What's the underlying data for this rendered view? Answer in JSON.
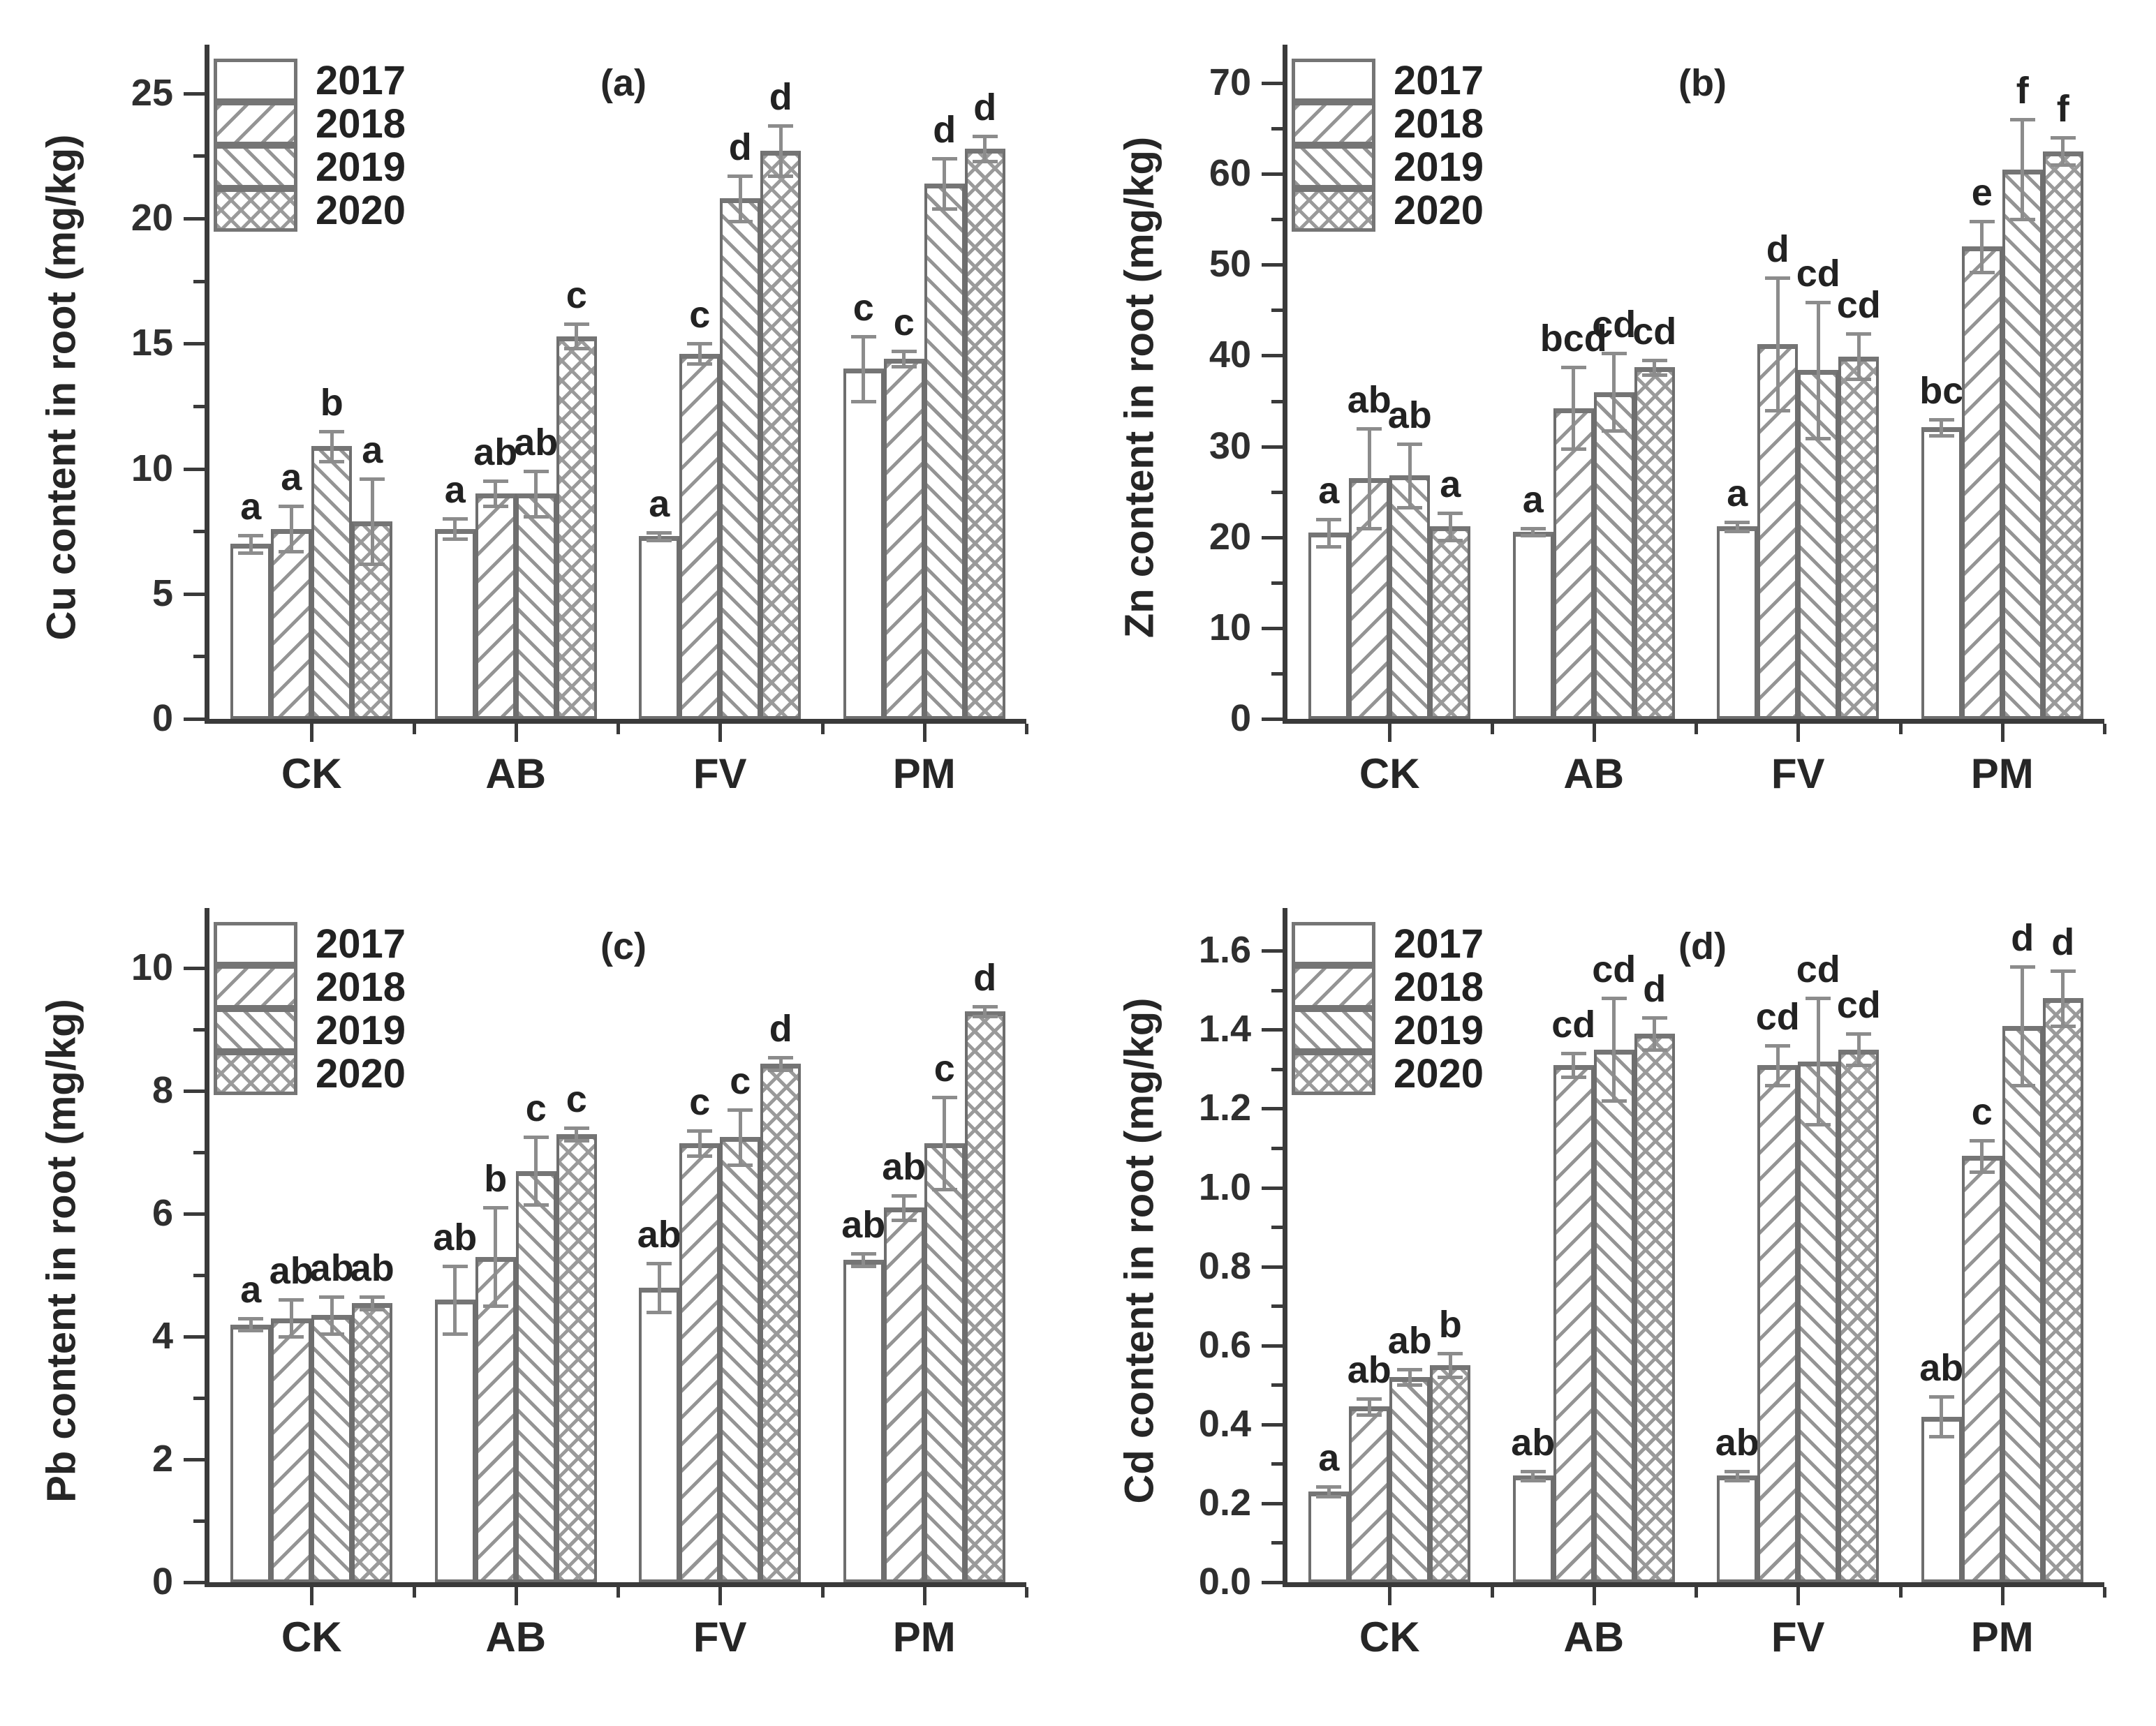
{
  "colors": {
    "background": "#ffffff",
    "ink": "#3a3a3a",
    "bar_outline": "#6e6e6e",
    "hatch_line": "#949494",
    "error_bar": "#8c8c8c"
  },
  "legend_years": [
    "2017",
    "2018",
    "2019",
    "2020"
  ],
  "chart_data": [
    {
      "type": "bar",
      "panel_label": "(a)",
      "ylabel": "Cu content in root (mg/kg)",
      "xlabel": "",
      "categories": [
        "CK",
        "AB",
        "FV",
        "PM"
      ],
      "ylim": [
        0,
        26.5
      ],
      "ytick_values": [
        0,
        5,
        10,
        15,
        20,
        25
      ],
      "yticks": [
        "0",
        "5",
        "10",
        "15",
        "20",
        "25"
      ],
      "minor_step": 2.5,
      "grid": false,
      "legend_position": "top-left",
      "series": [
        {
          "name": "2017",
          "hatch": "none",
          "values": [
            7.0,
            7.6,
            7.3,
            14.0
          ],
          "errors": [
            0.35,
            0.4,
            0.15,
            1.3
          ],
          "letters": [
            "a",
            "a",
            "a",
            "c"
          ]
        },
        {
          "name": "2018",
          "hatch": "diagonal-up",
          "values": [
            7.6,
            9.0,
            14.6,
            14.4
          ],
          "errors": [
            0.9,
            0.5,
            0.4,
            0.3
          ],
          "letters": [
            "a",
            "ab",
            "c",
            "c"
          ]
        },
        {
          "name": "2019",
          "hatch": "diagonal-down",
          "values": [
            10.9,
            9.0,
            20.8,
            21.4
          ],
          "errors": [
            0.6,
            0.9,
            0.9,
            1.0
          ],
          "letters": [
            "b",
            "ab",
            "d",
            "d"
          ]
        },
        {
          "name": "2020",
          "hatch": "cross",
          "values": [
            7.9,
            15.3,
            22.7,
            22.8
          ],
          "errors": [
            1.7,
            0.5,
            1.0,
            0.5
          ],
          "letters": [
            "a",
            "c",
            "d",
            "d"
          ]
        }
      ]
    },
    {
      "type": "bar",
      "panel_label": "(b)",
      "ylabel": "Zn content in root (mg/kg)",
      "xlabel": "",
      "categories": [
        "CK",
        "AB",
        "FV",
        "PM"
      ],
      "ylim": [
        0,
        73
      ],
      "ytick_values": [
        0,
        10,
        20,
        30,
        40,
        50,
        60,
        70
      ],
      "yticks": [
        "0",
        "10",
        "20",
        "30",
        "40",
        "50",
        "60",
        "70"
      ],
      "minor_step": 5,
      "grid": false,
      "legend_position": "top-left",
      "series": [
        {
          "name": "2017",
          "hatch": "none",
          "values": [
            20.5,
            20.6,
            21.2,
            32.1
          ],
          "errors": [
            1.5,
            0.4,
            0.5,
            0.9
          ],
          "letters": [
            "a",
            "a",
            "a",
            "bc"
          ]
        },
        {
          "name": "2018",
          "hatch": "diagonal-up",
          "values": [
            26.5,
            34.2,
            41.3,
            52.0
          ],
          "errors": [
            5.5,
            4.5,
            7.3,
            2.8
          ],
          "letters": [
            "ab",
            "bcd",
            "d",
            "e"
          ]
        },
        {
          "name": "2019",
          "hatch": "diagonal-down",
          "values": [
            26.8,
            36.0,
            38.4,
            60.5
          ],
          "errors": [
            3.5,
            4.3,
            7.5,
            5.5
          ],
          "letters": [
            "ab",
            "cd",
            "cd",
            "f"
          ]
        },
        {
          "name": "2020",
          "hatch": "cross",
          "values": [
            21.2,
            38.7,
            39.9,
            62.5
          ],
          "errors": [
            1.5,
            0.8,
            2.5,
            1.5
          ],
          "letters": [
            "a",
            "cd",
            "cd",
            "f"
          ]
        }
      ]
    },
    {
      "type": "bar",
      "panel_label": "(c)",
      "ylabel": "Pb content in root (mg/kg)",
      "xlabel": "",
      "categories": [
        "CK",
        "AB",
        "FV",
        "PM"
      ],
      "ylim": [
        0,
        10.8
      ],
      "ytick_values": [
        0,
        2,
        4,
        6,
        8,
        10
      ],
      "yticks": [
        "0",
        "2",
        "4",
        "6",
        "8",
        "10"
      ],
      "minor_step": 1,
      "grid": false,
      "legend_position": "top-left",
      "series": [
        {
          "name": "2017",
          "hatch": "none",
          "values": [
            4.2,
            4.6,
            4.8,
            5.25
          ],
          "errors": [
            0.1,
            0.55,
            0.4,
            0.1
          ],
          "letters": [
            "a",
            "ab",
            "ab",
            "ab"
          ]
        },
        {
          "name": "2018",
          "hatch": "diagonal-up",
          "values": [
            4.3,
            5.3,
            7.15,
            6.1
          ],
          "errors": [
            0.3,
            0.8,
            0.2,
            0.2
          ],
          "letters": [
            "ab",
            "b",
            "c",
            "ab"
          ]
        },
        {
          "name": "2019",
          "hatch": "diagonal-down",
          "values": [
            4.35,
            6.7,
            7.25,
            7.15
          ],
          "errors": [
            0.3,
            0.55,
            0.45,
            0.75
          ],
          "letters": [
            "ab",
            "c",
            "c",
            "c"
          ]
        },
        {
          "name": "2020",
          "hatch": "cross",
          "values": [
            4.55,
            7.3,
            8.45,
            9.3
          ],
          "errors": [
            0.1,
            0.1,
            0.1,
            0.08
          ],
          "letters": [
            "ab",
            "c",
            "d",
            "d"
          ]
        }
      ]
    },
    {
      "type": "bar",
      "panel_label": "(d)",
      "ylabel": "Cd content in root (mg/kg)",
      "xlabel": "",
      "categories": [
        "CK",
        "AB",
        "FV",
        "PM"
      ],
      "ylim": [
        0,
        1.68
      ],
      "ytick_values": [
        0,
        0.2,
        0.4,
        0.6,
        0.8,
        1.0,
        1.2,
        1.4,
        1.6
      ],
      "yticks": [
        "0.0",
        "0.2",
        "0.4",
        "0.6",
        "0.8",
        "1.0",
        "1.2",
        "1.4",
        "1.6"
      ],
      "minor_step": 0.1,
      "grid": false,
      "legend_position": "top-left",
      "series": [
        {
          "name": "2017",
          "hatch": "none",
          "values": [
            0.23,
            0.27,
            0.27,
            0.42
          ],
          "errors": [
            0.012,
            0.012,
            0.012,
            0.05
          ],
          "letters": [
            "a",
            "ab",
            "ab",
            "ab"
          ]
        },
        {
          "name": "2018",
          "hatch": "diagonal-up",
          "values": [
            0.445,
            1.31,
            1.31,
            1.08
          ],
          "errors": [
            0.02,
            0.03,
            0.05,
            0.04
          ],
          "letters": [
            "ab",
            "cd",
            "cd",
            "c"
          ]
        },
        {
          "name": "2019",
          "hatch": "diagonal-down",
          "values": [
            0.52,
            1.35,
            1.32,
            1.41
          ],
          "errors": [
            0.02,
            0.13,
            0.16,
            0.15
          ],
          "letters": [
            "ab",
            "cd",
            "cd",
            "d"
          ]
        },
        {
          "name": "2020",
          "hatch": "cross",
          "values": [
            0.55,
            1.39,
            1.35,
            1.48
          ],
          "errors": [
            0.03,
            0.04,
            0.04,
            0.07
          ],
          "letters": [
            "b",
            "d",
            "cd",
            "d"
          ]
        }
      ]
    }
  ]
}
